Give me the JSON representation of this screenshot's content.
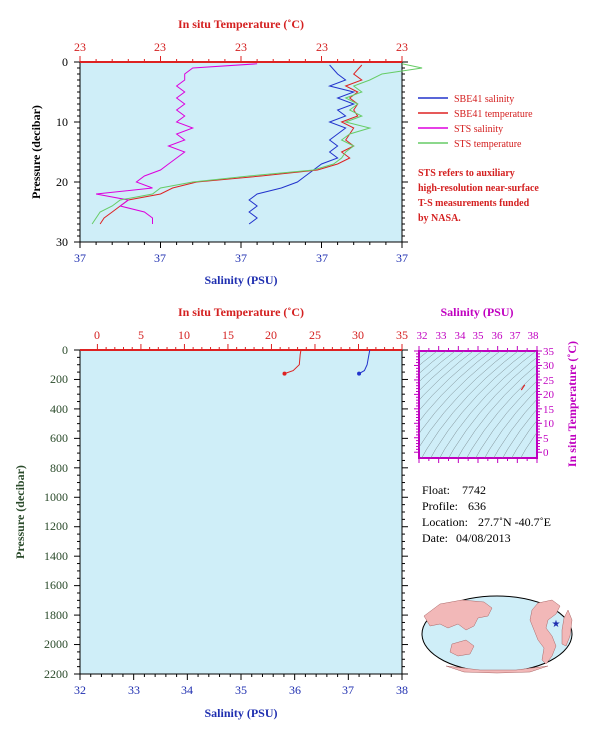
{
  "colors": {
    "background": "#ffffff",
    "plot_fill": "#cfeef8",
    "salinity": "#2233cc",
    "temperature": "#dd2222",
    "sts_salinity": "#dd00dd",
    "sts_temperature": "#66cc66",
    "label_red": "#d42020",
    "label_blue": "#1f2fb0",
    "label_green": "#2a4a2a",
    "label_magenta": "#c000c0"
  },
  "top_plot": {
    "top_axis_title": "In situ Temperature (˚C)",
    "top_ticks": [
      "23",
      "23",
      "23",
      "23",
      "23"
    ],
    "left_axis_title": "Pressure (decibar)",
    "left_ticks": [
      "0",
      "10",
      "20",
      "30"
    ],
    "bottom_axis_title": "Salinity (PSU)",
    "bottom_ticks": [
      "37",
      "37",
      "37",
      "37",
      "37"
    ],
    "legend": [
      {
        "label": "SBE41 salinity",
        "color": "#2233cc"
      },
      {
        "label": "SBE41 temperature",
        "color": "#dd2222"
      },
      {
        "label": "STS salinity",
        "color": "#dd00dd"
      },
      {
        "label": "STS temperature",
        "color": "#66cc66"
      }
    ],
    "note_lines": [
      "STS refers to auxiliary",
      "high-resolution near-surface",
      "T-S measurements funded",
      "by NASA."
    ]
  },
  "bottom_plot": {
    "top_axis_title": "In situ Temperature (˚C)",
    "top_ticks": [
      "0",
      "5",
      "10",
      "15",
      "20",
      "25",
      "30",
      "35"
    ],
    "left_axis_title": "Pressure (decibar)",
    "left_ticks": [
      "0",
      "200",
      "400",
      "600",
      "800",
      "1000",
      "1200",
      "1400",
      "1600",
      "1800",
      "2000",
      "2200"
    ],
    "bottom_axis_title": "Salinity (PSU)",
    "bottom_ticks": [
      "32",
      "33",
      "34",
      "35",
      "36",
      "37",
      "38"
    ]
  },
  "ts_plot": {
    "top_axis_title": "Salinity (PSU)",
    "top_ticks": [
      "32",
      "33",
      "34",
      "35",
      "36",
      "37",
      "38"
    ],
    "right_axis_title": "In situ Temperature (˚C)",
    "right_ticks": [
      "0",
      "5",
      "10",
      "15",
      "20",
      "25",
      "30",
      "35"
    ]
  },
  "float_info": {
    "float_label": "Float:",
    "float_value": "7742",
    "profile_label": "Profile:",
    "profile_value": "636",
    "location_label": "Location:",
    "location_value": "27.7˚N  -40.7˚E",
    "date_label": "Date:",
    "date_value": "04/08/2013"
  },
  "chart_data": [
    {
      "type": "line",
      "panel": "top",
      "x_top": {
        "label": "In situ Temperature (˚C)",
        "range": [
          23.1,
          23.9
        ]
      },
      "x_bottom": {
        "label": "Salinity (PSU)",
        "range": [
          37.0,
          37.4
        ]
      },
      "y": {
        "label": "Pressure (decibar)",
        "range": [
          30,
          0
        ],
        "reversed": true
      },
      "series": [
        {
          "name": "SBE41 salinity",
          "axis": "x_bottom",
          "color": "#2233cc",
          "points": [
            [
              37.31,
              0.5
            ],
            [
              37.32,
              2
            ],
            [
              37.33,
              3
            ],
            [
              37.31,
              4
            ],
            [
              37.34,
              5
            ],
            [
              37.32,
              6
            ],
            [
              37.34,
              7
            ],
            [
              37.32,
              8
            ],
            [
              37.33,
              9
            ],
            [
              37.31,
              10
            ],
            [
              37.33,
              11
            ],
            [
              37.32,
              12
            ],
            [
              37.31,
              13
            ],
            [
              37.32,
              14
            ],
            [
              37.31,
              15
            ],
            [
              37.32,
              16
            ],
            [
              37.3,
              17
            ],
            [
              37.29,
              18
            ],
            [
              37.28,
              19
            ],
            [
              37.27,
              20
            ],
            [
              37.25,
              21
            ],
            [
              37.22,
              22
            ],
            [
              37.21,
              23
            ],
            [
              37.22,
              24
            ],
            [
              37.21,
              25
            ],
            [
              37.22,
              26
            ],
            [
              37.21,
              27
            ]
          ]
        },
        {
          "name": "SBE41 temperature",
          "axis": "x_top",
          "color": "#dd2222",
          "points": [
            [
              23.8,
              0.5
            ],
            [
              23.78,
              2
            ],
            [
              23.8,
              3
            ],
            [
              23.76,
              4
            ],
            [
              23.79,
              5
            ],
            [
              23.77,
              6
            ],
            [
              23.79,
              7
            ],
            [
              23.78,
              8
            ],
            [
              23.79,
              9
            ],
            [
              23.75,
              10
            ],
            [
              23.78,
              11
            ],
            [
              23.77,
              12
            ],
            [
              23.76,
              13
            ],
            [
              23.78,
              14
            ],
            [
              23.75,
              15
            ],
            [
              23.77,
              16
            ],
            [
              23.74,
              17
            ],
            [
              23.69,
              18
            ],
            [
              23.55,
              19
            ],
            [
              23.39,
              20
            ],
            [
              23.33,
              21
            ],
            [
              23.3,
              22
            ],
            [
              23.22,
              23
            ],
            [
              23.2,
              24
            ],
            [
              23.18,
              25
            ],
            [
              23.16,
              26
            ],
            [
              23.15,
              27
            ]
          ]
        },
        {
          "name": "STS salinity",
          "axis": "x_bottom",
          "color": "#dd00dd",
          "points": [
            [
              37.22,
              0.3
            ],
            [
              37.14,
              1
            ],
            [
              37.13,
              2
            ],
            [
              37.13,
              3
            ],
            [
              37.12,
              4
            ],
            [
              37.13,
              5
            ],
            [
              37.12,
              6
            ],
            [
              37.13,
              7
            ],
            [
              37.12,
              8
            ],
            [
              37.13,
              9
            ],
            [
              37.12,
              10
            ],
            [
              37.14,
              11
            ],
            [
              37.12,
              12
            ],
            [
              37.13,
              13
            ],
            [
              37.11,
              14
            ],
            [
              37.13,
              15
            ],
            [
              37.12,
              16
            ],
            [
              37.11,
              17
            ],
            [
              37.1,
              18
            ],
            [
              37.08,
              19
            ],
            [
              37.07,
              20
            ],
            [
              37.09,
              21
            ],
            [
              37.02,
              22
            ],
            [
              37.06,
              23
            ],
            [
              37.05,
              24
            ],
            [
              37.08,
              25
            ],
            [
              37.09,
              26
            ],
            [
              37.09,
              27
            ]
          ]
        },
        {
          "name": "STS temperature",
          "axis": "x_top",
          "color": "#66cc66",
          "points": [
            [
              23.9,
              0.3
            ],
            [
              23.95,
              1
            ],
            [
              23.85,
              2
            ],
            [
              23.82,
              3
            ],
            [
              23.78,
              4
            ],
            [
              23.8,
              5
            ],
            [
              23.76,
              6
            ],
            [
              23.79,
              7
            ],
            [
              23.77,
              8
            ],
            [
              23.8,
              9
            ],
            [
              23.76,
              10
            ],
            [
              23.82,
              11
            ],
            [
              23.77,
              12
            ],
            [
              23.75,
              13
            ],
            [
              23.78,
              14
            ],
            [
              23.76,
              15
            ],
            [
              23.75,
              16
            ],
            [
              23.73,
              17
            ],
            [
              23.68,
              18
            ],
            [
              23.52,
              19
            ],
            [
              23.38,
              20
            ],
            [
              23.3,
              21
            ],
            [
              23.28,
              22
            ],
            [
              23.2,
              23
            ],
            [
              23.18,
              24
            ],
            [
              23.15,
              25
            ],
            [
              23.14,
              26
            ],
            [
              23.13,
              27
            ]
          ]
        }
      ]
    },
    {
      "type": "line",
      "panel": "bottom",
      "x_top": {
        "label": "In situ Temperature (˚C)",
        "range": [
          -2,
          35
        ]
      },
      "x_bottom": {
        "label": "Salinity (PSU)",
        "range": [
          32,
          38
        ]
      },
      "y": {
        "label": "Pressure (decibar)",
        "range": [
          2200,
          0
        ],
        "reversed": true
      },
      "series": [
        {
          "axis": "x_top",
          "color": "#dd2222",
          "points": [
            [
              23.4,
              0
            ],
            [
              23.3,
              30
            ],
            [
              23.2,
              100
            ],
            [
              22.5,
              140
            ],
            [
              21.5,
              160
            ]
          ]
        },
        {
          "axis": "x_bottom",
          "color": "#2233cc",
          "points": [
            [
              37.4,
              0
            ],
            [
              37.38,
              40
            ],
            [
              37.35,
              100
            ],
            [
              37.3,
              140
            ],
            [
              37.2,
              160
            ]
          ]
        }
      ]
    },
    {
      "type": "scatter",
      "panel": "ts",
      "x": {
        "label": "Salinity (PSU)",
        "range": [
          32,
          38
        ]
      },
      "y": {
        "label": "In situ Temperature (˚C)",
        "range": [
          -2,
          35
        ]
      },
      "series": [
        {
          "color": "#dd2222",
          "points": [
            [
              37.2,
              21.5
            ],
            [
              37.3,
              22.5
            ],
            [
              37.38,
              23.3
            ]
          ]
        }
      ]
    }
  ]
}
